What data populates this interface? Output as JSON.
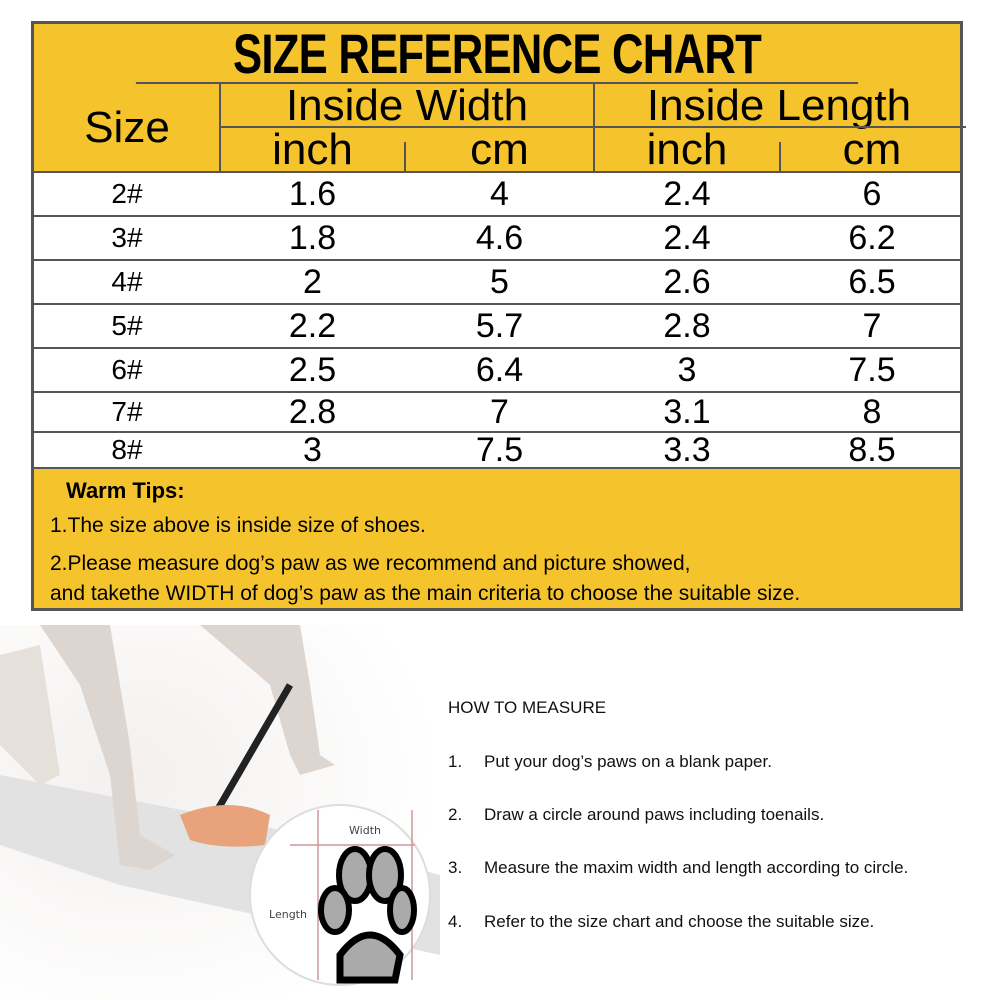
{
  "chart": {
    "title": "SIZE REFERENCE CHART",
    "headers": {
      "size": "Size",
      "width": "Inside Width",
      "length": "Inside Length",
      "inch": "inch",
      "cm": "cm"
    },
    "rows": [
      {
        "size": "2#",
        "w_in": "1.6",
        "w_cm": "4",
        "l_in": "2.4",
        "l_cm": "6"
      },
      {
        "size": "3#",
        "w_in": "1.8",
        "w_cm": "4.6",
        "l_in": "2.4",
        "l_cm": "6.2"
      },
      {
        "size": "4#",
        "w_in": "2",
        "w_cm": "5",
        "l_in": "2.6",
        "l_cm": "6.5"
      },
      {
        "size": "5#",
        "w_in": "2.2",
        "w_cm": "5.7",
        "l_in": "2.8",
        "l_cm": "7"
      },
      {
        "size": "6#",
        "w_in": "2.5",
        "w_cm": "6.4",
        "l_in": "3",
        "l_cm": "7.5"
      },
      {
        "size": "7#",
        "w_in": "2.8",
        "w_cm": "7",
        "l_in": "3.1",
        "l_cm": "8"
      },
      {
        "size": "8#",
        "w_in": "3",
        "w_cm": "7.5",
        "l_in": "3.3",
        "l_cm": "8.5"
      }
    ],
    "tips": {
      "heading": "Warm Tips:",
      "lines": [
        "1.The size above is inside size of shoes.",
        "2.Please measure dog’s paw as we recommend and picture showed,",
        "and takethe WIDTH of dog’s paw as the main criteria to choose the suitable size."
      ]
    },
    "colors": {
      "header_bg": "#f5c42c",
      "border": "#555555"
    }
  },
  "illustration": {
    "width_label": "Width",
    "length_label": "Length"
  },
  "how_to": {
    "heading": "HOW TO MEASURE",
    "steps": [
      {
        "n": "1.",
        "text": "Put your dog’s paws on a blank paper."
      },
      {
        "n": "2.",
        "text": "Draw a circle around paws including toenails."
      },
      {
        "n": "3.",
        "text": "Measure the maxim width and length according to circle."
      },
      {
        "n": "4.",
        "text": "Refer to the size chart and choose the suitable size."
      }
    ]
  }
}
